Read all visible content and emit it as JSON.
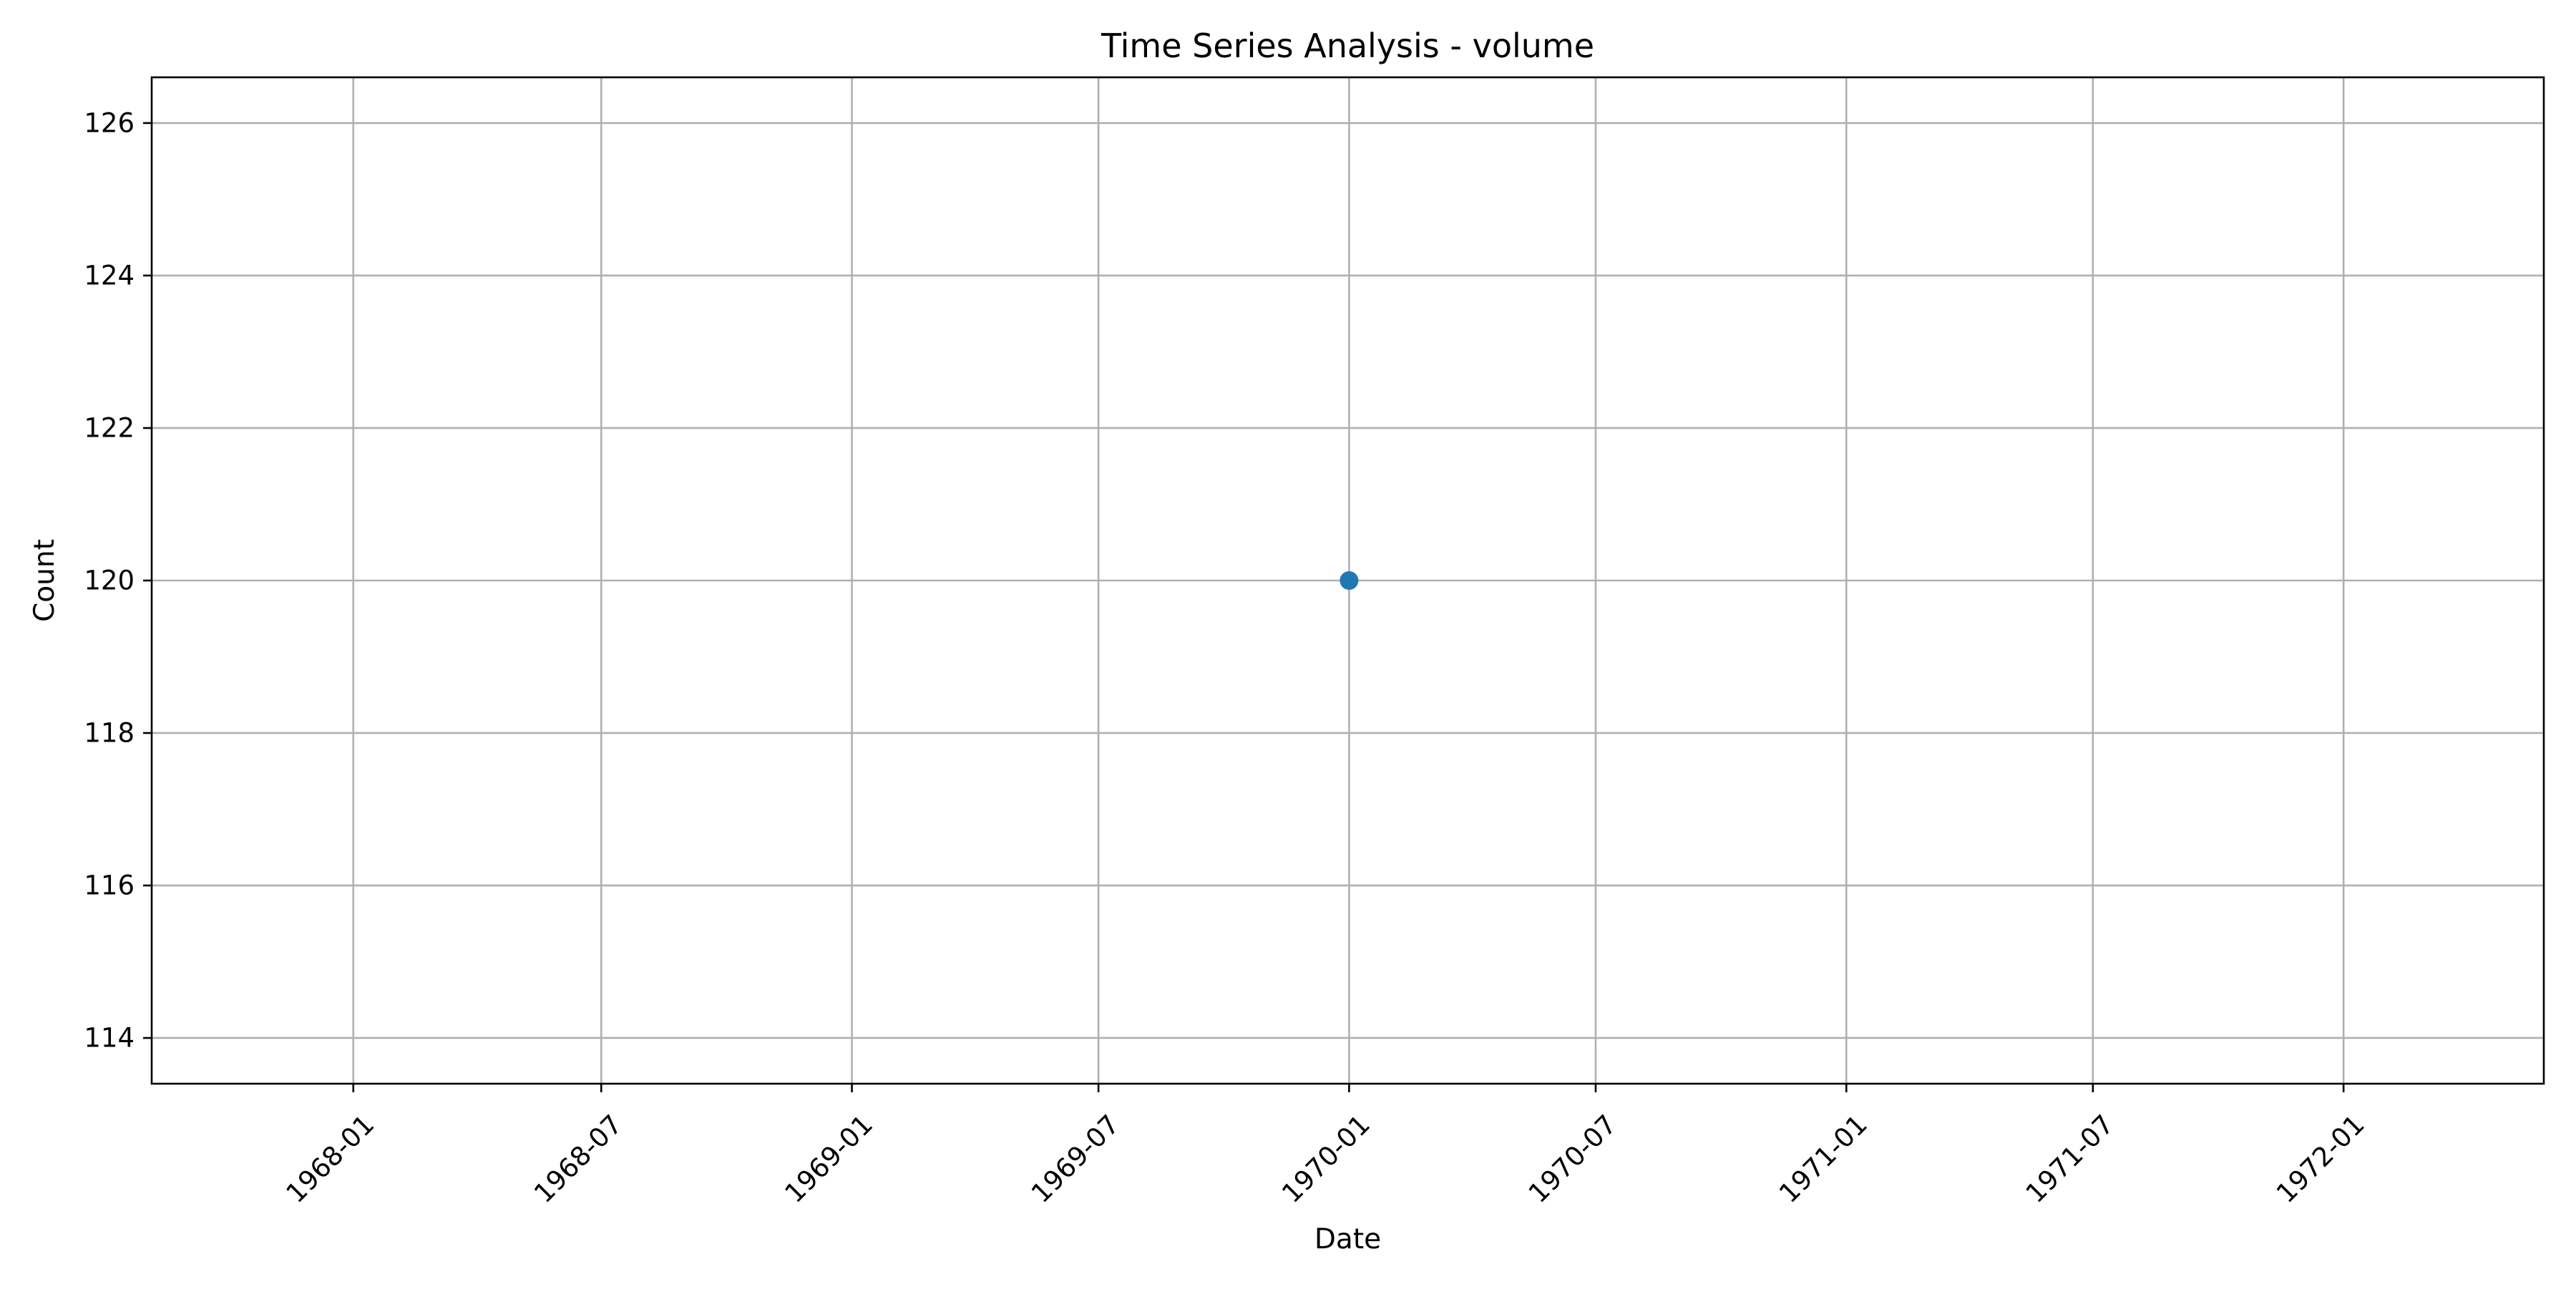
{
  "chart_data": {
    "type": "line",
    "title": "Time Series Analysis - volume",
    "xlabel": "Date",
    "ylabel": "Count",
    "x_ticks": [
      "1968-01",
      "1968-07",
      "1969-01",
      "1969-07",
      "1970-01",
      "1970-07",
      "1971-01",
      "1971-07",
      "1972-01"
    ],
    "y_ticks": [
      "114",
      "116",
      "118",
      "120",
      "122",
      "124",
      "126"
    ],
    "xlim": [
      "1967-08-06",
      "1972-05-27"
    ],
    "ylim": [
      113.4,
      126.6
    ],
    "grid": true,
    "series": [
      {
        "color": "#1f77b4",
        "marker": "circle",
        "points": [
          {
            "x": "1970-01-01",
            "y": 120
          }
        ]
      }
    ]
  }
}
